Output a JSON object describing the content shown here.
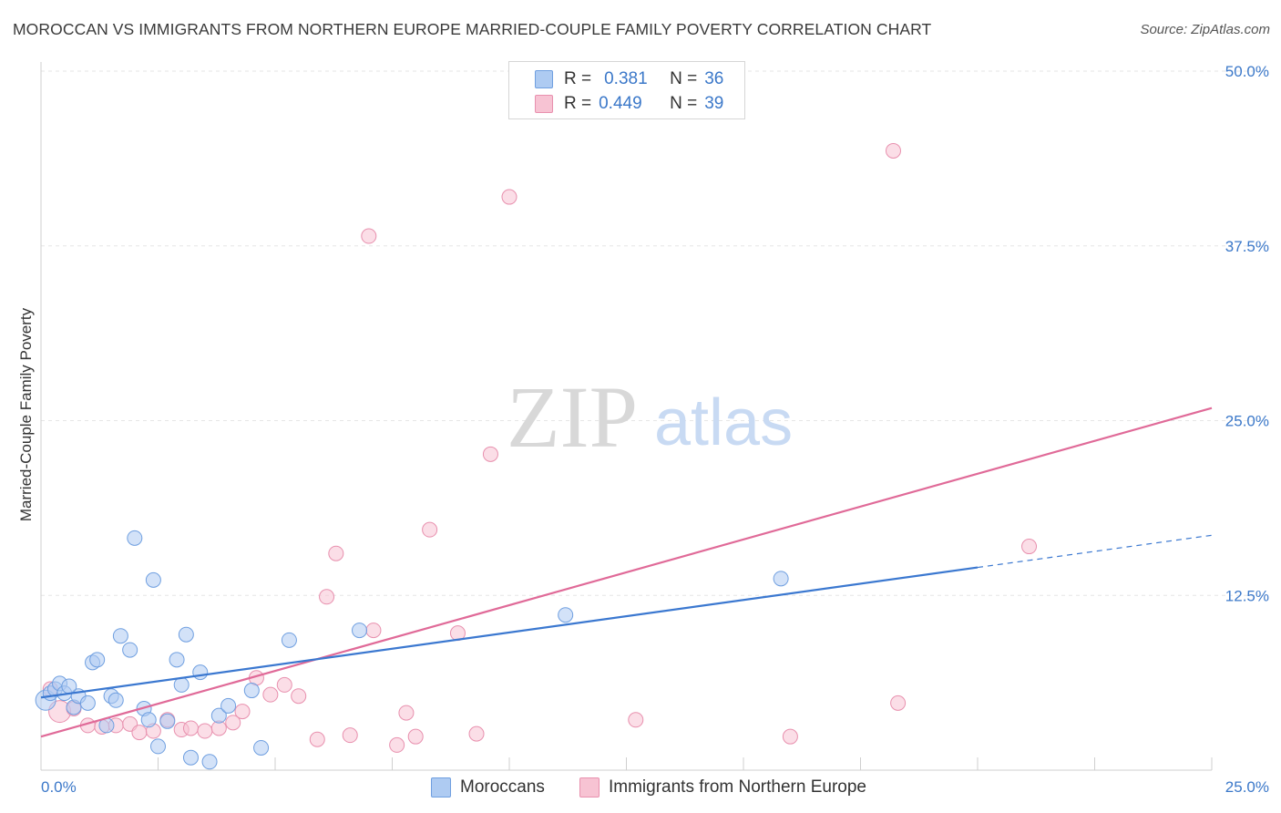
{
  "title": "MOROCCAN VS IMMIGRANTS FROM NORTHERN EUROPE MARRIED-COUPLE FAMILY POVERTY CORRELATION CHART",
  "source": "Source: ZipAtlas.com",
  "legend": {
    "row1": {
      "r_label": "R =",
      "r_value": "0.381",
      "n_label": "N =",
      "n_value": "36"
    },
    "row2": {
      "r_label": "R =",
      "r_value": "0.449",
      "n_label": "N =",
      "n_value": "39"
    }
  },
  "bottom_legend": {
    "series1": "Moroccans",
    "series2": "Immigrants from Northern Europe"
  },
  "watermark": {
    "zip": "ZIP",
    "atlas": "atlas"
  },
  "colors": {
    "blue_fill": "#aecbf2",
    "blue_stroke": "#6f9fe0",
    "blue_line": "#3b78d0",
    "pink_fill": "#f7c3d3",
    "pink_stroke": "#e890ae",
    "pink_line": "#e06a98",
    "tick_text": "#3b78c9"
  },
  "chart_data": {
    "type": "scatter",
    "title": "MOROCCAN VS IMMIGRANTS FROM NORTHERN EUROPE MARRIED-COUPLE FAMILY POVERTY CORRELATION CHART",
    "xlabel": "",
    "ylabel": "Married-Couple Family Poverty",
    "xlim": [
      0,
      25
    ],
    "ylim": [
      0,
      50
    ],
    "x_tick_labels": [
      "0.0%",
      "25.0%"
    ],
    "y_ticks": [
      12.5,
      25.0,
      37.5,
      50.0
    ],
    "y_tick_labels": [
      "12.5%",
      "25.0%",
      "37.5%",
      "50.0%"
    ],
    "grid": true,
    "legend_position": "top-center",
    "series": [
      {
        "name": "Moroccans",
        "R": 0.381,
        "N": 36,
        "trend": {
          "x0": 0,
          "y0": 5.2,
          "x1": 20,
          "y1": 14.5,
          "dashed_to_x": 25,
          "dashed_to_y": 16.8
        },
        "points": [
          [
            0.1,
            5.0
          ],
          [
            0.2,
            5.5
          ],
          [
            0.3,
            5.8
          ],
          [
            0.4,
            6.2
          ],
          [
            0.5,
            5.5
          ],
          [
            0.7,
            4.5
          ],
          [
            0.8,
            5.3
          ],
          [
            1.0,
            4.8
          ],
          [
            1.1,
            7.7
          ],
          [
            1.2,
            7.9
          ],
          [
            1.4,
            3.2
          ],
          [
            1.5,
            5.3
          ],
          [
            1.6,
            5.0
          ],
          [
            1.7,
            9.6
          ],
          [
            1.9,
            8.6
          ],
          [
            2.0,
            16.6
          ],
          [
            2.2,
            4.4
          ],
          [
            2.3,
            3.6
          ],
          [
            2.4,
            13.6
          ],
          [
            2.5,
            1.7
          ],
          [
            2.7,
            3.5
          ],
          [
            2.9,
            7.9
          ],
          [
            3.0,
            6.1
          ],
          [
            3.1,
            9.7
          ],
          [
            3.2,
            0.9
          ],
          [
            3.4,
            7.0
          ],
          [
            3.6,
            0.6
          ],
          [
            3.8,
            3.9
          ],
          [
            4.0,
            4.6
          ],
          [
            4.5,
            5.7
          ],
          [
            4.7,
            1.6
          ],
          [
            5.3,
            9.3
          ],
          [
            6.8,
            10.0
          ],
          [
            11.2,
            11.1
          ],
          [
            15.8,
            13.7
          ],
          [
            0.6,
            6.0
          ]
        ]
      },
      {
        "name": "Immigrants from Northern Europe",
        "R": 0.449,
        "N": 39,
        "trend": {
          "x0": 0,
          "y0": 2.4,
          "x1": 25,
          "y1": 25.9
        },
        "points": [
          [
            0.2,
            5.8
          ],
          [
            0.4,
            4.2
          ],
          [
            0.7,
            4.4
          ],
          [
            1.0,
            3.2
          ],
          [
            1.3,
            3.1
          ],
          [
            1.6,
            3.2
          ],
          [
            1.9,
            3.3
          ],
          [
            2.1,
            2.7
          ],
          [
            2.4,
            2.8
          ],
          [
            2.7,
            3.6
          ],
          [
            3.0,
            2.9
          ],
          [
            3.2,
            3.0
          ],
          [
            3.5,
            2.8
          ],
          [
            3.8,
            3.0
          ],
          [
            4.1,
            3.4
          ],
          [
            4.3,
            4.2
          ],
          [
            4.6,
            6.6
          ],
          [
            4.9,
            5.4
          ],
          [
            5.2,
            6.1
          ],
          [
            5.5,
            5.3
          ],
          [
            5.9,
            2.2
          ],
          [
            6.1,
            12.4
          ],
          [
            6.3,
            15.5
          ],
          [
            6.6,
            2.5
          ],
          [
            7.0,
            38.2
          ],
          [
            7.1,
            10.0
          ],
          [
            7.6,
            1.8
          ],
          [
            7.8,
            4.1
          ],
          [
            8.0,
            2.4
          ],
          [
            8.3,
            17.2
          ],
          [
            8.9,
            9.8
          ],
          [
            9.3,
            2.6
          ],
          [
            9.6,
            22.6
          ],
          [
            10.0,
            41.0
          ],
          [
            12.7,
            3.6
          ],
          [
            16.0,
            2.4
          ],
          [
            18.2,
            44.3
          ],
          [
            18.3,
            4.8
          ],
          [
            21.1,
            16.0
          ]
        ]
      }
    ]
  }
}
